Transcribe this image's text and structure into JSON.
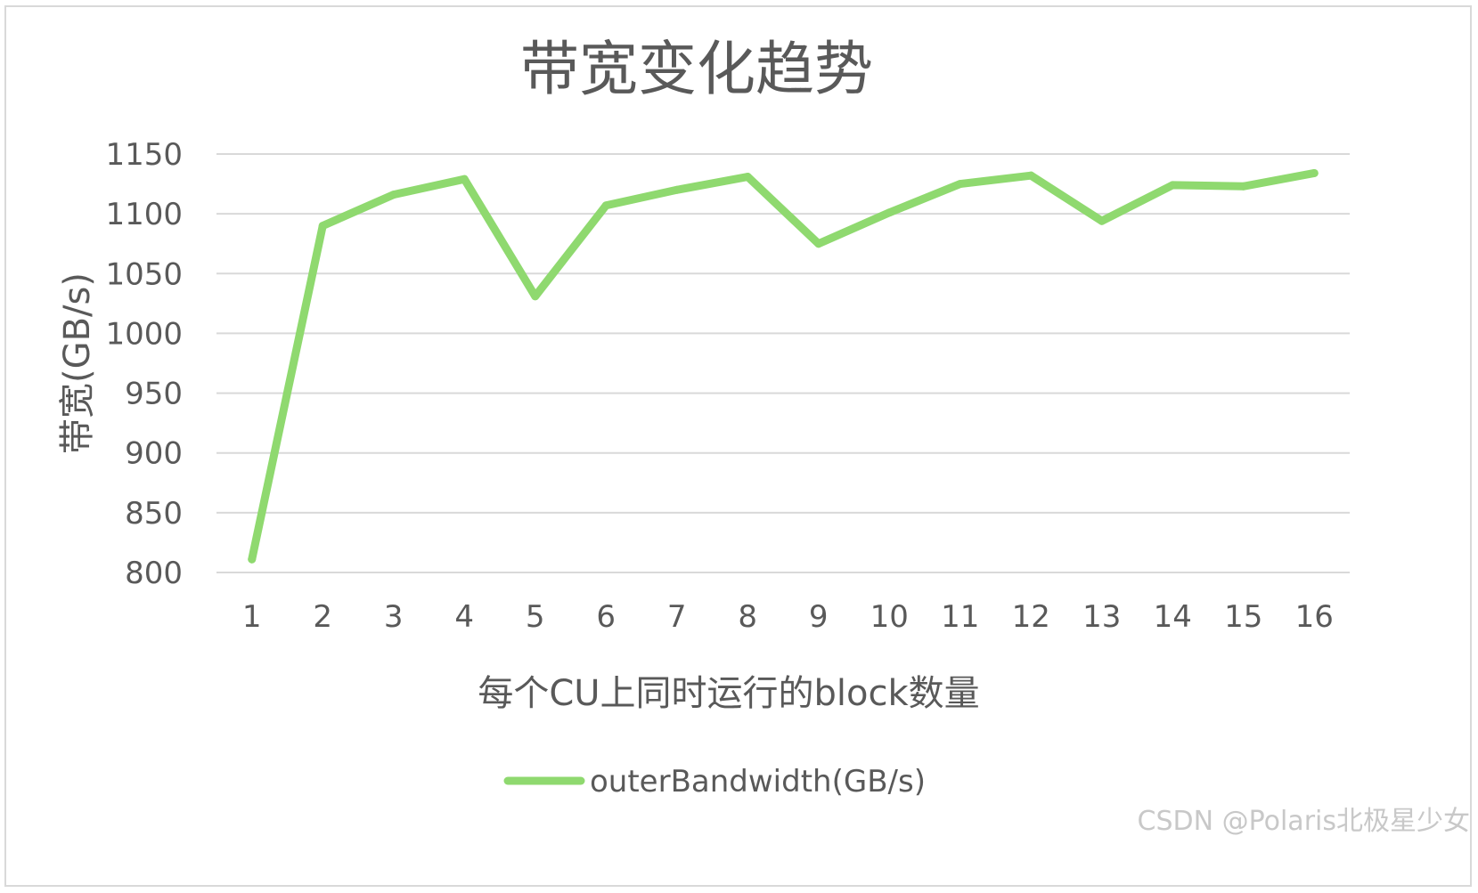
{
  "chart_data": {
    "type": "line",
    "title": "带宽变化趋势",
    "xlabel": "每个CU上同时运行的block数量",
    "ylabel": "带宽(GB/s)",
    "ylim": [
      800,
      1150
    ],
    "yticks": [
      800,
      850,
      900,
      950,
      1000,
      1050,
      1100,
      1150
    ],
    "grid": true,
    "legend_position": "bottom",
    "categories": [
      "1",
      "2",
      "3",
      "4",
      "5",
      "6",
      "7",
      "8",
      "9",
      "10",
      "11",
      "12",
      "13",
      "14",
      "15",
      "16"
    ],
    "series": [
      {
        "name": "outerBandwidth(GB/s)",
        "color": "#8fd96f",
        "values": [
          811,
          1090,
          1116,
          1129,
          1031,
          1107,
          1120,
          1131,
          1075,
          1101,
          1125,
          1132,
          1094,
          1124,
          1123,
          1134
        ]
      }
    ]
  },
  "watermark": "CSDN @Polaris北极星少女"
}
